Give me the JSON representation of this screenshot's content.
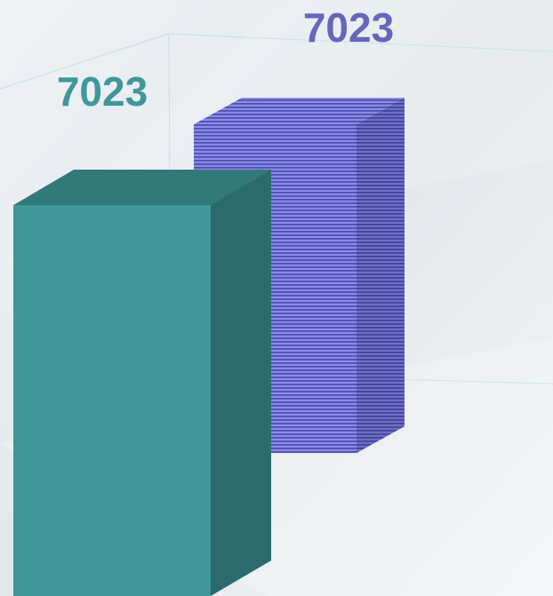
{
  "chart_data": {
    "type": "bar3d",
    "categories": [
      null
    ],
    "series": [
      {
        "color": "#3f9799",
        "values": [
          7023
        ]
      },
      {
        "color": "#7878dc",
        "values": [
          7023
        ]
      }
    ]
  }
}
